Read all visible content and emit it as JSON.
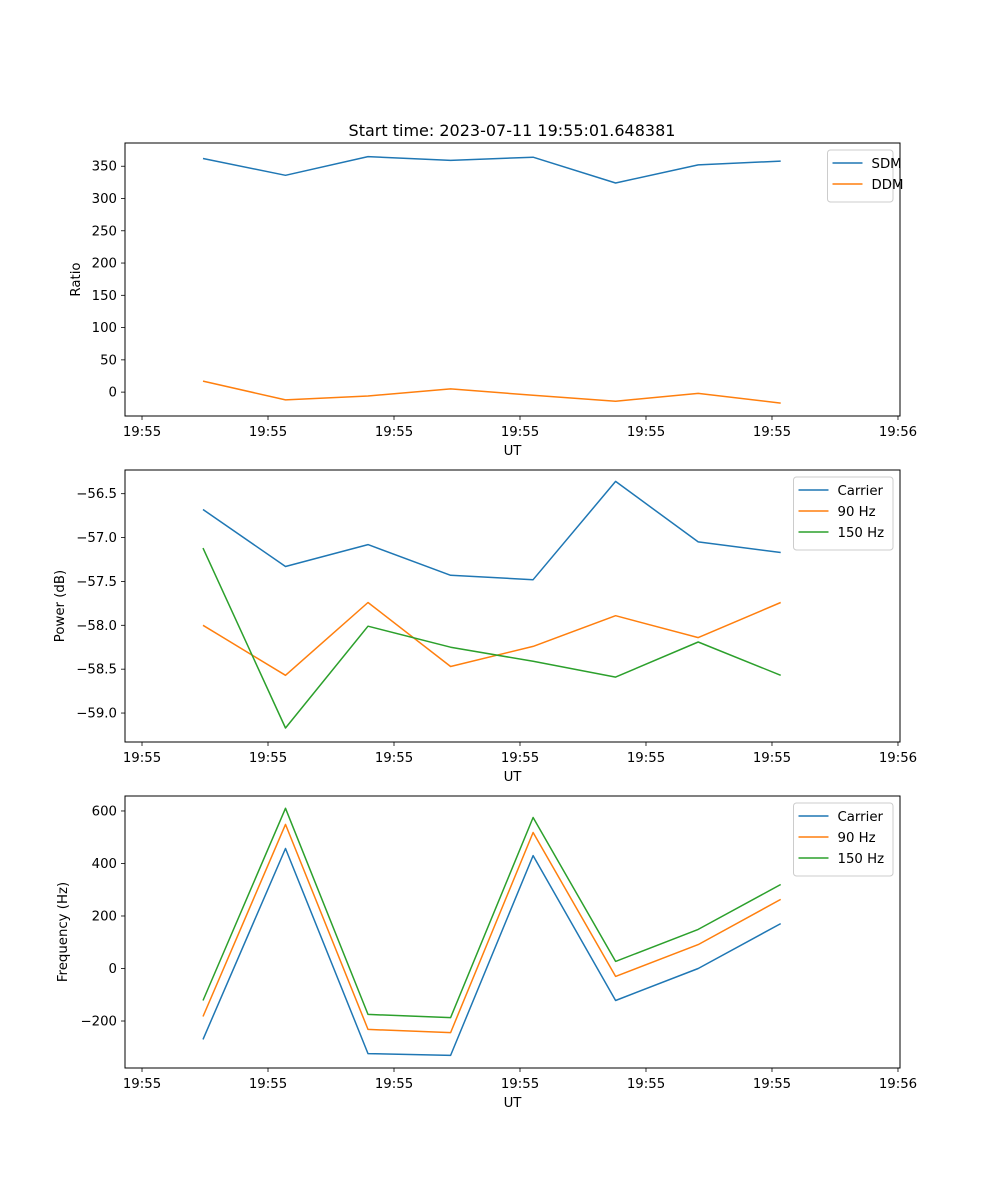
{
  "figure_title": "Start time: 2023-07-11 19:55:01.648381",
  "chart_data": [
    {
      "type": "line",
      "title": "Start time: 2023-07-11 19:55:01.648381",
      "xlabel": "UT",
      "ylabel": "Ratio",
      "x_ticks": [
        "19:55",
        "19:55",
        "19:55",
        "19:55",
        "19:55",
        "19:55",
        "19:56"
      ],
      "x_tick_positions": [
        0,
        1,
        2,
        3,
        4,
        5,
        6
      ],
      "x": [
        0.484,
        1.139,
        1.794,
        2.449,
        3.104,
        3.759,
        4.414,
        5.069
      ],
      "xlim": [
        -0.135,
        6.016
      ],
      "y_ticks": [
        0,
        50,
        100,
        150,
        200,
        250,
        300,
        350
      ],
      "ylim": [
        -37,
        386
      ],
      "grid": false,
      "legend_position": "top-right",
      "series": [
        {
          "name": "SDM",
          "color": "#1f77b4",
          "values": [
            362,
            336,
            365,
            359,
            364,
            324,
            352,
            358
          ]
        },
        {
          "name": "DDM",
          "color": "#ff7f0e",
          "values": [
            17,
            -12,
            -6,
            5,
            -5,
            -14,
            -2,
            -17
          ]
        }
      ]
    },
    {
      "type": "line",
      "title": "",
      "xlabel": "UT",
      "ylabel": "Power (dB)",
      "x_ticks": [
        "19:55",
        "19:55",
        "19:55",
        "19:55",
        "19:55",
        "19:55",
        "19:56"
      ],
      "x_tick_positions": [
        0,
        1,
        2,
        3,
        4,
        5,
        6
      ],
      "x": [
        0.484,
        1.139,
        1.794,
        2.449,
        3.104,
        3.759,
        4.414,
        5.069
      ],
      "xlim": [
        -0.135,
        6.016
      ],
      "y_ticks": [
        -59.0,
        -58.5,
        -58.0,
        -57.5,
        -57.0,
        -56.5
      ],
      "y_tick_labels": [
        "−59.0",
        "−58.5",
        "−58.0",
        "−57.5",
        "−57.0",
        "−56.5"
      ],
      "ylim": [
        -59.33,
        -56.23
      ],
      "grid": false,
      "legend_position": "top-right",
      "series": [
        {
          "name": "Carrier",
          "color": "#1f77b4",
          "values": [
            -56.68,
            -57.33,
            -57.08,
            -57.43,
            -57.48,
            -56.36,
            -57.05,
            -57.17
          ]
        },
        {
          "name": "90 Hz",
          "color": "#ff7f0e",
          "values": [
            -58.0,
            -58.57,
            -57.74,
            -58.47,
            -58.24,
            -57.89,
            -58.14,
            -57.74
          ]
        },
        {
          "name": "150 Hz",
          "color": "#2ca02c",
          "values": [
            -57.12,
            -59.17,
            -58.01,
            -58.25,
            -58.41,
            -58.59,
            -58.19,
            -58.57
          ]
        }
      ]
    },
    {
      "type": "line",
      "title": "",
      "xlabel": "UT",
      "ylabel": "Frequency (Hz)",
      "x_ticks": [
        "19:55",
        "19:55",
        "19:55",
        "19:55",
        "19:55",
        "19:55",
        "19:56"
      ],
      "x_tick_positions": [
        0,
        1,
        2,
        3,
        4,
        5,
        6
      ],
      "x": [
        0.484,
        1.139,
        1.794,
        2.449,
        3.104,
        3.759,
        4.414,
        5.069
      ],
      "xlim": [
        -0.135,
        6.016
      ],
      "y_ticks": [
        -200,
        0,
        200,
        400,
        600
      ],
      "y_tick_labels": [
        "−200",
        "0",
        "200",
        "400",
        "600"
      ],
      "ylim": [
        -379,
        657
      ],
      "grid": false,
      "legend_position": "top-right",
      "series": [
        {
          "name": "Carrier",
          "color": "#1f77b4",
          "values": [
            -270,
            457,
            -324,
            -331,
            430,
            -122,
            0,
            171
          ]
        },
        {
          "name": "90 Hz",
          "color": "#ff7f0e",
          "values": [
            -183,
            549,
            -232,
            -244,
            518,
            -30,
            91,
            263
          ]
        },
        {
          "name": "150 Hz",
          "color": "#2ca02c",
          "values": [
            -122,
            610,
            -175,
            -187,
            575,
            27,
            149,
            320
          ]
        }
      ]
    }
  ]
}
